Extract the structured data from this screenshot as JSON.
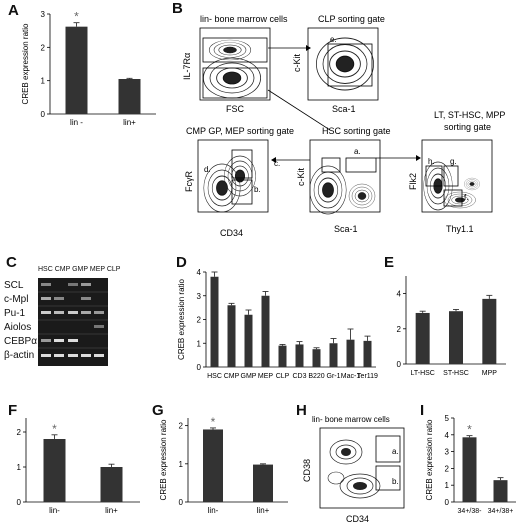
{
  "panel_letters": [
    "A",
    "B",
    "C",
    "D",
    "E",
    "F",
    "G",
    "H",
    "I"
  ],
  "chart_data": [
    {
      "id": "A",
      "type": "bar",
      "categories": [
        "lin -",
        "lin+"
      ],
      "values": [
        2.62,
        1.05
      ],
      "errors": [
        0.12,
        0.02
      ],
      "ylabel": "CREB expression ratio",
      "ylim": [
        0,
        3
      ],
      "yticks": [
        0,
        1,
        2,
        3
      ],
      "annotations": [
        {
          "category": "lin -",
          "text": "*"
        }
      ]
    },
    {
      "id": "D",
      "type": "bar",
      "categories": [
        "HSC",
        "CMP",
        "GMP",
        "MEP",
        "CLP",
        "CD3",
        "B220",
        "Gr-1",
        "Mac-1",
        "Ter119"
      ],
      "values": [
        3.8,
        2.6,
        2.2,
        3.0,
        0.9,
        0.95,
        0.75,
        1.0,
        1.15,
        1.1
      ],
      "errors": [
        0.2,
        0.08,
        0.2,
        0.18,
        0.05,
        0.12,
        0.06,
        0.2,
        0.45,
        0.2
      ],
      "ylabel": "CREB expression ratio",
      "ylim": [
        0,
        4
      ],
      "yticks": [
        0,
        1,
        2,
        3,
        4
      ]
    },
    {
      "id": "E",
      "type": "bar",
      "categories": [
        "LT-HSC",
        "ST-HSC",
        "MPP"
      ],
      "values": [
        2.9,
        3.0,
        3.7
      ],
      "errors": [
        0.1,
        0.1,
        0.2
      ],
      "ylabel": "",
      "ylim": [
        0,
        5
      ],
      "yticks": [
        0,
        2,
        4
      ]
    },
    {
      "id": "F",
      "type": "bar",
      "categories": [
        "lin-",
        "lin+"
      ],
      "values": [
        1.8,
        1.0
      ],
      "errors": [
        0.12,
        0.08
      ],
      "ylabel": "",
      "ylim": [
        0,
        2.4
      ],
      "yticks": [
        0,
        1,
        2
      ],
      "annotations": [
        {
          "category": "lin-",
          "text": "*"
        }
      ]
    },
    {
      "id": "G",
      "type": "bar",
      "categories": [
        "lin-",
        "lin+"
      ],
      "values": [
        1.9,
        0.98
      ],
      "errors": [
        0.04,
        0.02
      ],
      "ylabel": "CREB expression ratio",
      "ylim": [
        0,
        2.2
      ],
      "yticks": [
        0,
        1,
        2
      ],
      "annotations": [
        {
          "category": "lin-",
          "text": "*"
        }
      ]
    },
    {
      "id": "I",
      "type": "bar",
      "categories": [
        "34+/38-",
        "34+/38+"
      ],
      "values": [
        3.85,
        1.3
      ],
      "errors": [
        0.1,
        0.15
      ],
      "ylabel": "CREB expression ratio",
      "ylim": [
        0,
        5
      ],
      "yticks": [
        0,
        1,
        2,
        3,
        4,
        5
      ],
      "annotations": [
        {
          "category": "34+/38-",
          "text": "*"
        }
      ]
    }
  ],
  "flow_B": {
    "title_lin": "lin- bone marrow cells",
    "title_clp": "CLP sorting gate",
    "title_cmp": "CMP GP, MEP sorting gate",
    "title_hsc": "HSC sorting gate",
    "title_lt_line1": "LT, ST-HSC, MPP",
    "title_lt_line2": "sorting gate",
    "axis_il7": "IL-7Rα",
    "axis_fsc": "FSC",
    "axis_ckit1": "c-Kit",
    "axis_sca1a": "Sca-1",
    "axis_fcgr": "FcγR",
    "axis_cd34": "CD34",
    "axis_ckit2": "c-Kit",
    "axis_sca1b": "Sca-1",
    "axis_flk2": "Flk2",
    "axis_thy": "Thy1.1",
    "gate_a": "a.",
    "gate_b": "b.",
    "gate_c": "c.",
    "gate_d": "d.",
    "gate_e": "e.",
    "gate_f": "f.",
    "gate_g": "g.",
    "gate_h": "h."
  },
  "gel_C": {
    "lanes": "HSC CMP GMP MEP CLP",
    "genes": [
      "SCL",
      "c-Mpl",
      "Pu-1",
      "Aiolos",
      "CEBPα",
      "β-actin"
    ]
  },
  "flow_H": {
    "title": "lin- bone marrow cells",
    "axis_y": "CD38",
    "axis_x": "CD34",
    "gate_a": "a.",
    "gate_b": "b."
  }
}
